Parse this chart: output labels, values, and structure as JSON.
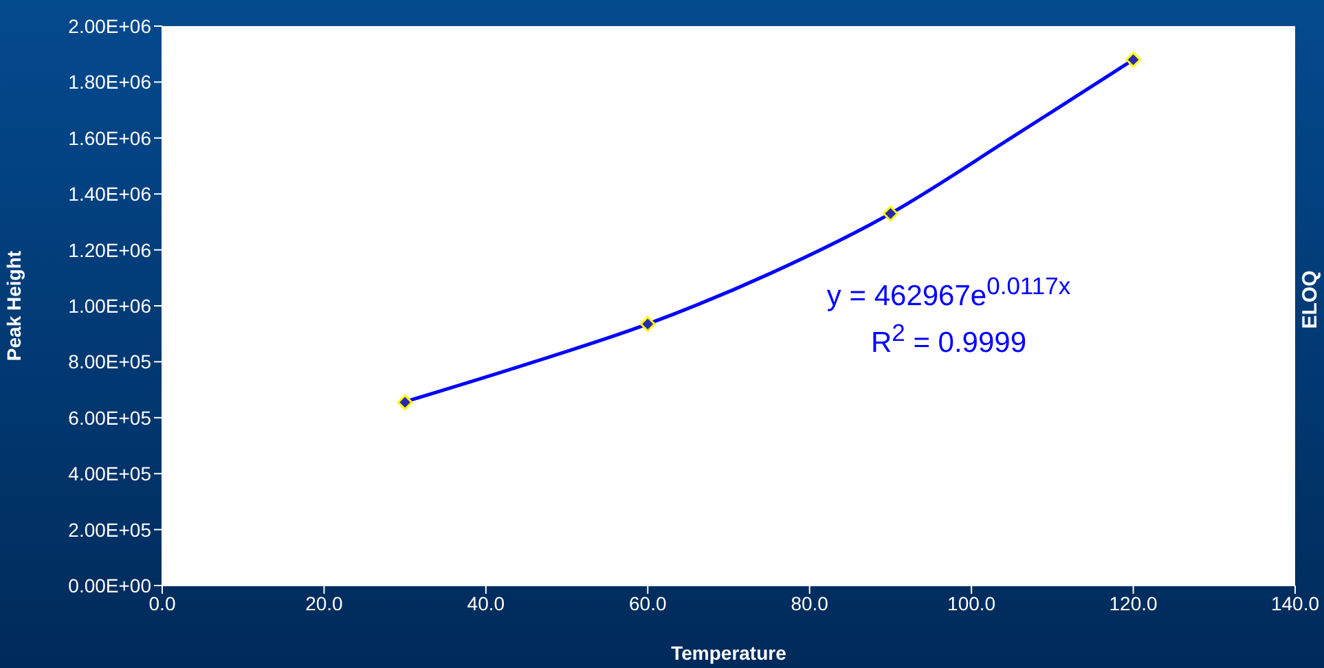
{
  "chart_data": {
    "type": "scatter",
    "xlabel": "Temperature",
    "ylabel": "Peak Height",
    "series": [
      {
        "color": "#2a2ab0",
        "marker": "diamond",
        "x": [
          30,
          60,
          90,
          120
        ],
        "values": [
          655000,
          935000,
          1330000,
          1880000
        ]
      },
      {
        "type": "line",
        "color": "#0000ff",
        "marker": "none",
        "x": [
          30,
          45,
          60,
          75,
          90,
          105,
          120
        ],
        "values": [
          657000,
          791000,
          935000,
          1114000,
          1330000,
          1602000,
          1880000
        ]
      }
    ],
    "xlim": [
      0,
      140
    ],
    "xticks": [
      {
        "value": 0,
        "label": "0.0"
      },
      {
        "value": 20,
        "label": "20.0"
      },
      {
        "value": 40,
        "label": "40.0"
      },
      {
        "value": 60,
        "label": "60.0"
      },
      {
        "value": 80,
        "label": "80.0"
      },
      {
        "value": 100,
        "label": "100.0"
      },
      {
        "value": 120,
        "label": "120.0"
      },
      {
        "value": 140,
        "label": "140.0"
      }
    ],
    "ylim": [
      0,
      2000000
    ],
    "yticks": [
      {
        "value": 0,
        "label": "0.00E+00"
      },
      {
        "value": 200000,
        "label": "2.00E+05"
      },
      {
        "value": 400000,
        "label": "4.00E+05"
      },
      {
        "value": 600000,
        "label": "6.00E+05"
      },
      {
        "value": 800000,
        "label": "8.00E+05"
      },
      {
        "value": 1000000,
        "label": "1.00E+06"
      },
      {
        "value": 1200000,
        "label": "1.20E+06"
      },
      {
        "value": 1400000,
        "label": "1.40E+06"
      },
      {
        "value": 1600000,
        "label": "1.60E+06"
      },
      {
        "value": 1800000,
        "label": "1.80E+06"
      },
      {
        "value": 2000000,
        "label": "2.00E+06"
      }
    ],
    "annotations": [
      "y = 462967e$^{0.0117x}$",
      "R$^{2}$ = 0.9999",
      "ELOQ"
    ]
  }
}
